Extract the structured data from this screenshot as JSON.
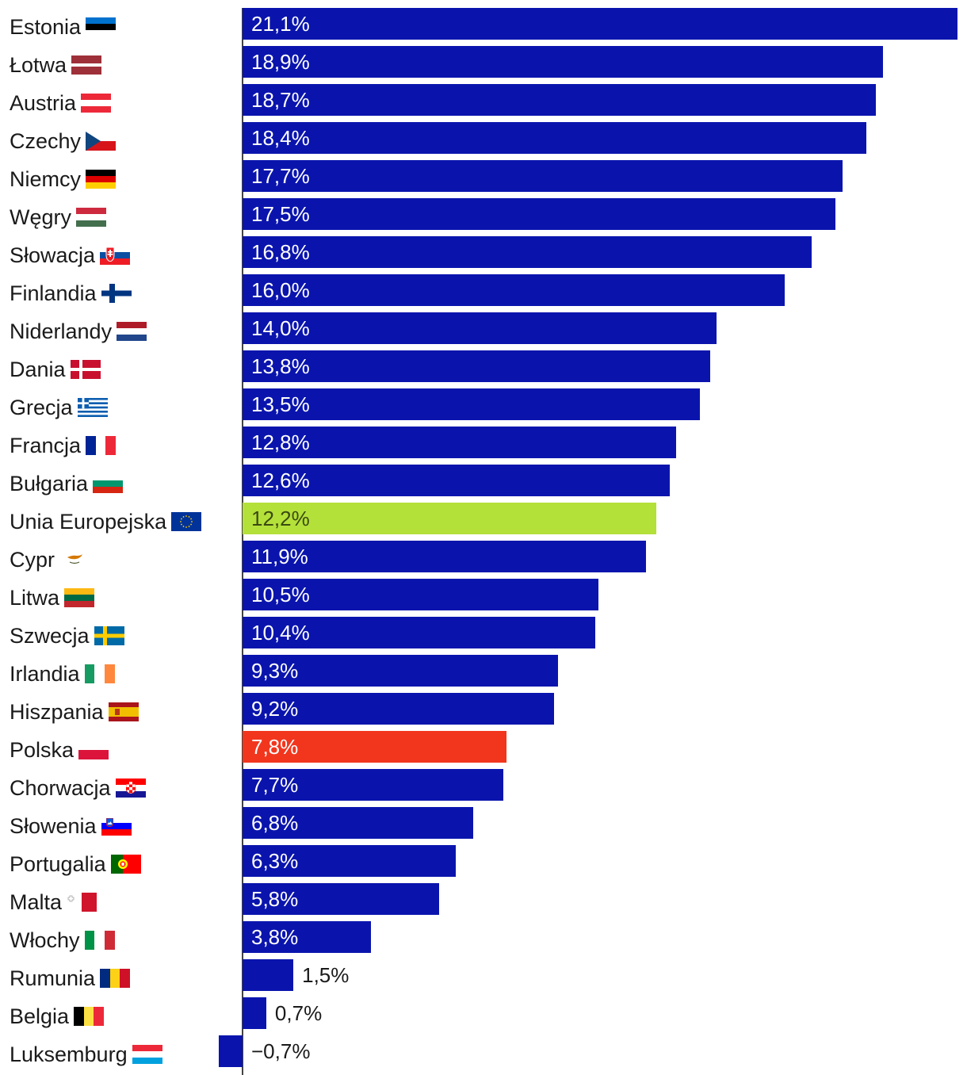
{
  "chart_data": {
    "type": "bar",
    "orientation": "horizontal",
    "title": "",
    "xlabel": "",
    "ylabel": "",
    "xlim": [
      -0.7,
      21.1
    ],
    "grid": false,
    "categories": [
      "Estonia",
      "Łotwa",
      "Austria",
      "Czechy",
      "Niemcy",
      "Węgry",
      "Słowacja",
      "Finlandia",
      "Niderlandy",
      "Dania",
      "Grecja",
      "Francja",
      "Bułgaria",
      "Unia Europejska",
      "Cypr",
      "Litwa",
      "Szwecja",
      "Irlandia",
      "Hiszpania",
      "Polska",
      "Chorwacja",
      "Słowenia",
      "Portugalia",
      "Malta",
      "Włochy",
      "Rumunia",
      "Belgia",
      "Luksemburg"
    ],
    "values": [
      21.1,
      18.9,
      18.7,
      18.4,
      17.7,
      17.5,
      16.8,
      16.0,
      14.0,
      13.8,
      13.5,
      12.8,
      12.6,
      12.2,
      11.9,
      10.5,
      10.4,
      9.3,
      9.2,
      7.8,
      7.7,
      6.8,
      6.3,
      5.8,
      3.8,
      1.5,
      0.7,
      -0.7
    ],
    "labels": [
      "21,1%",
      "18,9%",
      "18,7%",
      "18,4%",
      "17,7%",
      "17,5%",
      "16,8%",
      "16,0%",
      "14,0%",
      "13,8%",
      "13,5%",
      "12,8%",
      "12,6%",
      "12,2%",
      "11,9%",
      "10,5%",
      "10,4%",
      "9,3%",
      "9,2%",
      "7,8%",
      "7,7%",
      "6,8%",
      "6,3%",
      "5,8%",
      "3,8%",
      "1,5%",
      "0,7%",
      "−0,7%"
    ],
    "flags": [
      "estonia-flag-icon",
      "latvia-flag-icon",
      "austria-flag-icon",
      "czechia-flag-icon",
      "germany-flag-icon",
      "hungary-flag-icon",
      "slovakia-flag-icon",
      "finland-flag-icon",
      "netherlands-flag-icon",
      "denmark-flag-icon",
      "greece-flag-icon",
      "france-flag-icon",
      "bulgaria-flag-icon",
      "eu-flag-icon",
      "cyprus-flag-icon",
      "lithuania-flag-icon",
      "sweden-flag-icon",
      "ireland-flag-icon",
      "spain-flag-icon",
      "poland-flag-icon",
      "croatia-flag-icon",
      "slovenia-flag-icon",
      "portugal-flag-icon",
      "malta-flag-icon",
      "italy-flag-icon",
      "romania-flag-icon",
      "belgium-flag-icon",
      "luxembourg-flag-icon"
    ],
    "colors": {
      "default": "#0a14ad",
      "Unia Europejska": "#b4e03a",
      "Polska": "#f2361e"
    }
  }
}
